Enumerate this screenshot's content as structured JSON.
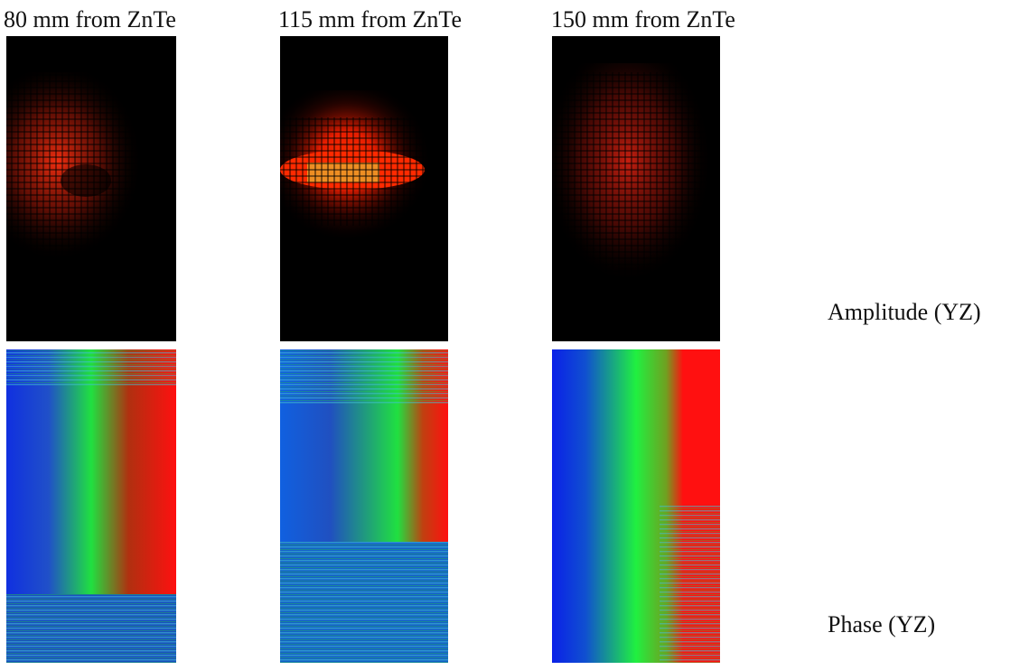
{
  "columns": [
    {
      "title": "80 mm from ZnTe"
    },
    {
      "title": "115 mm from ZnTe"
    },
    {
      "title": "150 mm from ZnTe"
    }
  ],
  "rows": [
    {
      "label": "Amplitude (YZ)"
    },
    {
      "label": "Phase (YZ)"
    }
  ]
}
